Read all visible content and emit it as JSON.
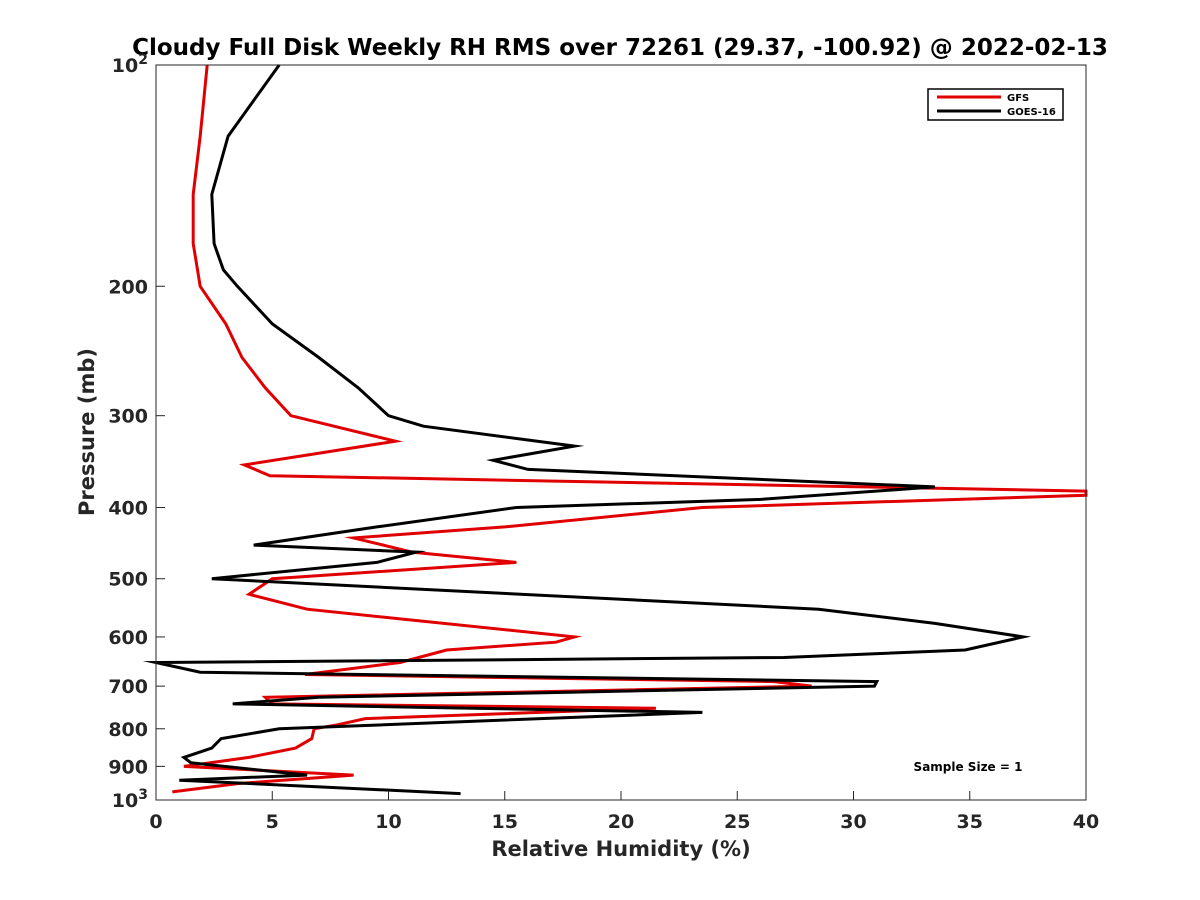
{
  "chart_data": {
    "type": "line",
    "title": "Cloudy Full Disk Weekly RH RMS over 72261 (29.37, -100.92) @ 2022-02-13",
    "xlabel": "Relative Humidity (%)",
    "ylabel": "Pressure (mb)",
    "xlim": [
      0,
      40
    ],
    "ylim": [
      100,
      1000
    ],
    "y_scale": "log",
    "y_reversed": true,
    "x_ticks": [
      "0",
      "5",
      "10",
      "15",
      "20",
      "25",
      "30",
      "35",
      "40"
    ],
    "y_ticks": [
      {
        "value": 100,
        "label": "10",
        "sup": "2"
      },
      {
        "value": 200,
        "label": "200",
        "sup": ""
      },
      {
        "value": 300,
        "label": "300",
        "sup": ""
      },
      {
        "value": 400,
        "label": "400",
        "sup": ""
      },
      {
        "value": 500,
        "label": "500",
        "sup": ""
      },
      {
        "value": 600,
        "label": "600",
        "sup": ""
      },
      {
        "value": 700,
        "label": "700",
        "sup": ""
      },
      {
        "value": 800,
        "label": "800",
        "sup": ""
      },
      {
        "value": 900,
        "label": "900",
        "sup": ""
      },
      {
        "value": 1000,
        "label": "10",
        "sup": "3"
      }
    ],
    "grid": false,
    "legend_position": "top-right",
    "annotation": "Sample Size = 1",
    "series": [
      {
        "name": "GFS",
        "color": "#e00000",
        "points": [
          [
            2.2,
            100
          ],
          [
            1.9,
            125
          ],
          [
            1.6,
            150
          ],
          [
            1.6,
            175
          ],
          [
            1.9,
            200
          ],
          [
            3.0,
            225
          ],
          [
            3.7,
            250
          ],
          [
            4.7,
            275
          ],
          [
            5.8,
            300
          ],
          [
            10.3,
            325
          ],
          [
            3.8,
            350
          ],
          [
            4.9,
            362
          ],
          [
            40.0,
            380
          ],
          [
            40.0,
            385
          ],
          [
            23.5,
            400
          ],
          [
            15.0,
            425
          ],
          [
            8.5,
            440
          ],
          [
            11.0,
            460
          ],
          [
            15.5,
            475
          ],
          [
            5.0,
            500
          ],
          [
            4.0,
            525
          ],
          [
            6.5,
            550
          ],
          [
            18.0,
            600
          ],
          [
            17.2,
            610
          ],
          [
            12.5,
            625
          ],
          [
            10.5,
            650
          ],
          [
            6.4,
            675
          ],
          [
            26.6,
            690
          ],
          [
            28.2,
            700
          ],
          [
            4.7,
            725
          ],
          [
            5.0,
            740
          ],
          [
            21.5,
            750
          ],
          [
            9.0,
            775
          ],
          [
            7.8,
            790
          ],
          [
            6.8,
            800
          ],
          [
            6.7,
            825
          ],
          [
            6.0,
            850
          ],
          [
            4.0,
            875
          ],
          [
            1.2,
            900
          ],
          [
            8.5,
            925
          ],
          [
            3.5,
            950
          ],
          [
            0.7,
            975
          ]
        ]
      },
      {
        "name": "GOES-16",
        "color": "#000000",
        "points": [
          [
            5.3,
            100
          ],
          [
            3.1,
            125
          ],
          [
            2.4,
            150
          ],
          [
            2.5,
            175
          ],
          [
            2.9,
            190
          ],
          [
            3.5,
            200
          ],
          [
            5.0,
            225
          ],
          [
            7.0,
            250
          ],
          [
            8.7,
            275
          ],
          [
            10.0,
            300
          ],
          [
            11.5,
            310
          ],
          [
            18.0,
            330
          ],
          [
            14.5,
            345
          ],
          [
            16.0,
            355
          ],
          [
            33.5,
            375
          ],
          [
            26.0,
            390
          ],
          [
            15.5,
            400
          ],
          [
            9.5,
            425
          ],
          [
            4.2,
            450
          ],
          [
            11.2,
            460
          ],
          [
            9.5,
            475
          ],
          [
            2.4,
            500
          ],
          [
            28.5,
            550
          ],
          [
            33.5,
            575
          ],
          [
            37.3,
            600
          ],
          [
            34.8,
            625
          ],
          [
            27.0,
            640
          ],
          [
            0.0,
            650
          ],
          [
            1.9,
            670
          ],
          [
            31.0,
            690
          ],
          [
            30.9,
            700
          ],
          [
            7.0,
            725
          ],
          [
            3.3,
            740
          ],
          [
            23.5,
            760
          ],
          [
            5.3,
            800
          ],
          [
            2.8,
            825
          ],
          [
            2.4,
            850
          ],
          [
            1.2,
            875
          ],
          [
            1.5,
            890
          ],
          [
            6.5,
            925
          ],
          [
            1.0,
            940
          ],
          [
            13.1,
            980
          ]
        ]
      }
    ]
  }
}
